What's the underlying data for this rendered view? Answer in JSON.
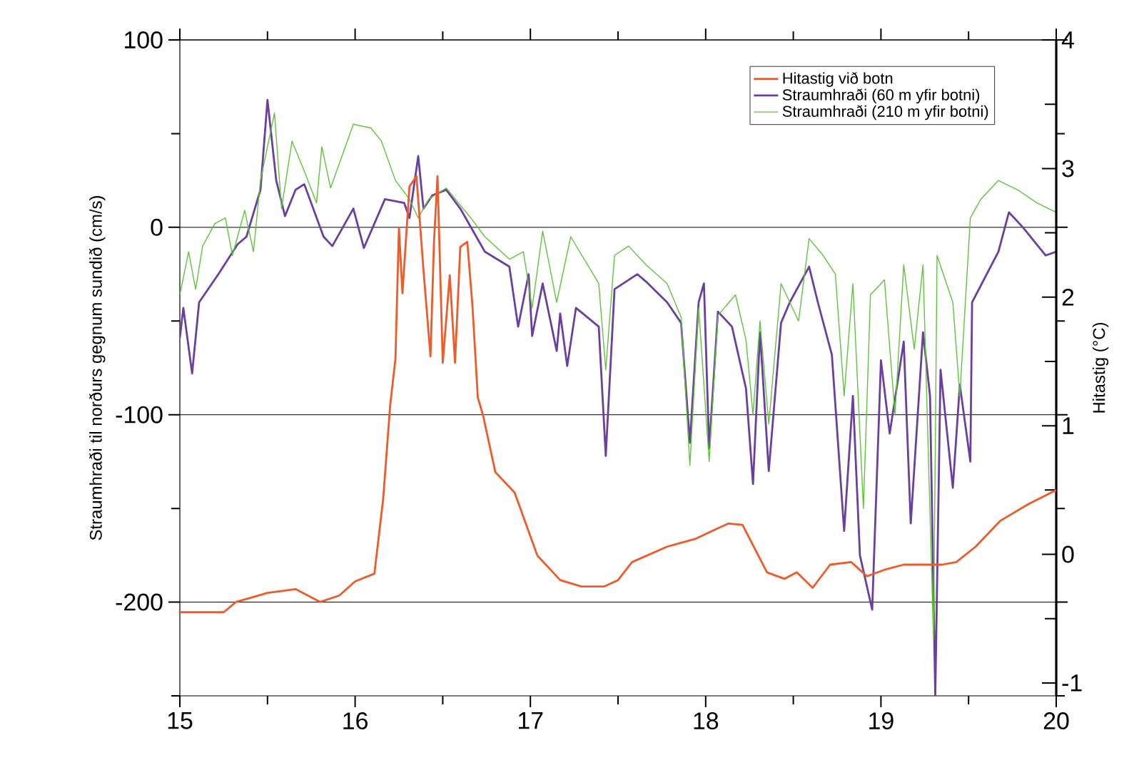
{
  "chart_data": {
    "type": "line",
    "xlabel": null,
    "ylabel": "Straumhraði til norðurs gegnum sundið (cm/s)",
    "y2label": "Hitastig (°C)",
    "xlim": [
      15,
      20
    ],
    "xticks": [
      15,
      {
        "value": 15.5,
        "label": null
      },
      16,
      {
        "value": 16.5,
        "label": null
      },
      17,
      {
        "value": 17.5,
        "label": null
      },
      18,
      {
        "value": 18.5,
        "label": null
      },
      19,
      {
        "value": 19.5,
        "label": null
      },
      20
    ],
    "ylim": [
      -250,
      100
    ],
    "yticks": [
      {
        "value": -250,
        "label": null
      },
      -200,
      {
        "value": -150,
        "label": null
      },
      -100,
      {
        "value": -50,
        "label": null
      },
      0,
      {
        "value": 50,
        "label": null
      },
      100
    ],
    "y2lim": [
      -1.1,
      4
    ],
    "y2ticks": [
      -1,
      {
        "value": -0.5,
        "label": null
      },
      0,
      {
        "value": 0.5,
        "label": null
      },
      1,
      {
        "value": 1.5,
        "label": null
      },
      2,
      {
        "value": 2.5,
        "label": null
      },
      3,
      {
        "value": 3.5,
        "label": null
      },
      4
    ],
    "grid": "y",
    "legend": "top right",
    "series": [
      {
        "name": "Hitastig við botn",
        "color": "#f05a28",
        "axis": "y2",
        "x": [
          15.0,
          15.25,
          15.32,
          15.5,
          15.66,
          15.8,
          15.91,
          16.0,
          16.11,
          16.16,
          16.2,
          16.23,
          16.25,
          16.27,
          16.31,
          16.35,
          16.39,
          16.43,
          16.45,
          16.47,
          16.5,
          16.54,
          16.57,
          16.6,
          16.64,
          16.67,
          16.7,
          16.73,
          16.8,
          16.91,
          17.04,
          17.17,
          17.29,
          17.42,
          17.5,
          17.58,
          17.78,
          17.94,
          18.05,
          18.13,
          18.21,
          18.35,
          18.45,
          18.52,
          18.61,
          18.71,
          18.83,
          18.92,
          19.02,
          19.13,
          19.35,
          19.43,
          19.54,
          19.68,
          19.84,
          20.0
        ],
        "values": [
          -0.45,
          -0.45,
          -0.37,
          -0.3,
          -0.27,
          -0.37,
          -0.32,
          -0.21,
          -0.15,
          0.43,
          1.16,
          1.52,
          2.54,
          2.03,
          2.86,
          2.94,
          2.21,
          1.54,
          2.43,
          2.94,
          1.49,
          2.17,
          1.49,
          2.39,
          2.43,
          1.92,
          1.22,
          1.08,
          0.64,
          0.48,
          -0.01,
          -0.2,
          -0.25,
          -0.25,
          -0.2,
          -0.06,
          0.06,
          0.12,
          0.19,
          0.24,
          0.23,
          -0.14,
          -0.19,
          -0.14,
          -0.26,
          -0.08,
          -0.06,
          -0.17,
          -0.12,
          -0.08,
          -0.08,
          -0.06,
          0.06,
          0.26,
          0.39,
          0.5
        ]
      },
      {
        "name": "Straumhraði (60 m yfir botni)",
        "color": "#6a3fa0",
        "x": [
          15.0,
          15.02,
          15.07,
          15.11,
          15.22,
          15.33,
          15.38,
          15.46,
          15.5,
          15.55,
          15.6,
          15.66,
          15.71,
          15.82,
          15.87,
          15.99,
          16.05,
          16.17,
          16.28,
          16.31,
          16.36,
          16.39,
          16.44,
          16.52,
          16.6,
          16.74,
          16.88,
          16.93,
          16.99,
          17.01,
          17.07,
          17.15,
          17.17,
          17.21,
          17.26,
          17.39,
          17.43,
          17.48,
          17.61,
          17.66,
          17.78,
          17.86,
          17.91,
          17.96,
          17.99,
          18.02,
          18.07,
          18.15,
          18.23,
          18.27,
          18.31,
          18.36,
          18.43,
          18.48,
          18.59,
          18.64,
          18.72,
          18.79,
          18.84,
          18.88,
          18.95,
          19.0,
          19.05,
          19.13,
          19.17,
          19.24,
          19.28,
          19.31,
          19.34,
          19.41,
          19.45,
          19.51,
          19.52,
          19.67,
          19.73,
          19.81,
          19.94,
          20.0
        ],
        "values": [
          -59,
          -43,
          -78,
          -40,
          -25,
          -9,
          -5,
          20,
          68,
          25,
          6,
          20,
          23,
          -5,
          -10,
          10,
          -11,
          15,
          13,
          5,
          38,
          10,
          17,
          20,
          10,
          -13,
          -21,
          -53,
          -25,
          -58,
          -30,
          -66,
          -46,
          -74,
          -43,
          -53,
          -122,
          -33,
          -25,
          -29,
          -40,
          -51,
          -115,
          -40,
          -30,
          -118,
          -45,
          -53,
          -86,
          -137,
          -56,
          -130,
          -51,
          -40,
          -21,
          -40,
          -68,
          -162,
          -90,
          -175,
          -204,
          -71,
          -110,
          -61,
          -158,
          -56,
          -90,
          -250,
          -76,
          -139,
          -84,
          -125,
          -40,
          -13,
          8,
          0,
          -15,
          -13
        ]
      },
      {
        "name": "Straumhraði (210 m yfir botni)",
        "color": "#5ec43a",
        "x": [
          15.0,
          15.05,
          15.09,
          15.13,
          15.2,
          15.26,
          15.3,
          15.37,
          15.42,
          15.46,
          15.54,
          15.58,
          15.64,
          15.71,
          15.78,
          15.81,
          15.86,
          15.99,
          16.09,
          16.15,
          16.23,
          16.31,
          16.36,
          16.42,
          16.52,
          16.66,
          16.74,
          16.88,
          16.96,
          17.01,
          17.07,
          17.15,
          17.23,
          17.39,
          17.43,
          17.48,
          17.56,
          17.66,
          17.78,
          17.86,
          17.91,
          17.96,
          18.02,
          18.07,
          18.17,
          18.23,
          18.27,
          18.31,
          18.36,
          18.43,
          18.53,
          18.59,
          18.67,
          18.74,
          18.79,
          18.84,
          18.9,
          18.94,
          19.02,
          19.08,
          19.13,
          19.19,
          19.24,
          19.3,
          19.32,
          19.41,
          19.45,
          19.51,
          19.57,
          19.67,
          19.78,
          19.89,
          20.0
        ],
        "values": [
          -36,
          -13,
          -33,
          -10,
          2,
          5,
          -15,
          9,
          -13,
          25,
          61,
          10,
          46,
          30,
          13,
          43,
          21,
          55,
          53,
          46,
          25,
          15,
          5,
          15,
          21,
          5,
          -5,
          -17,
          -13,
          -43,
          -2,
          -40,
          -5,
          -30,
          -76,
          -15,
          -10,
          -20,
          -30,
          -48,
          -127,
          -43,
          -125,
          -47,
          -36,
          -60,
          -100,
          -50,
          -105,
          -30,
          -50,
          -6,
          -15,
          -25,
          -90,
          -30,
          -150,
          -36,
          -28,
          -100,
          -20,
          -65,
          -20,
          -220,
          -15,
          -40,
          -90,
          5,
          15,
          25,
          20,
          13,
          8
        ]
      }
    ]
  }
}
